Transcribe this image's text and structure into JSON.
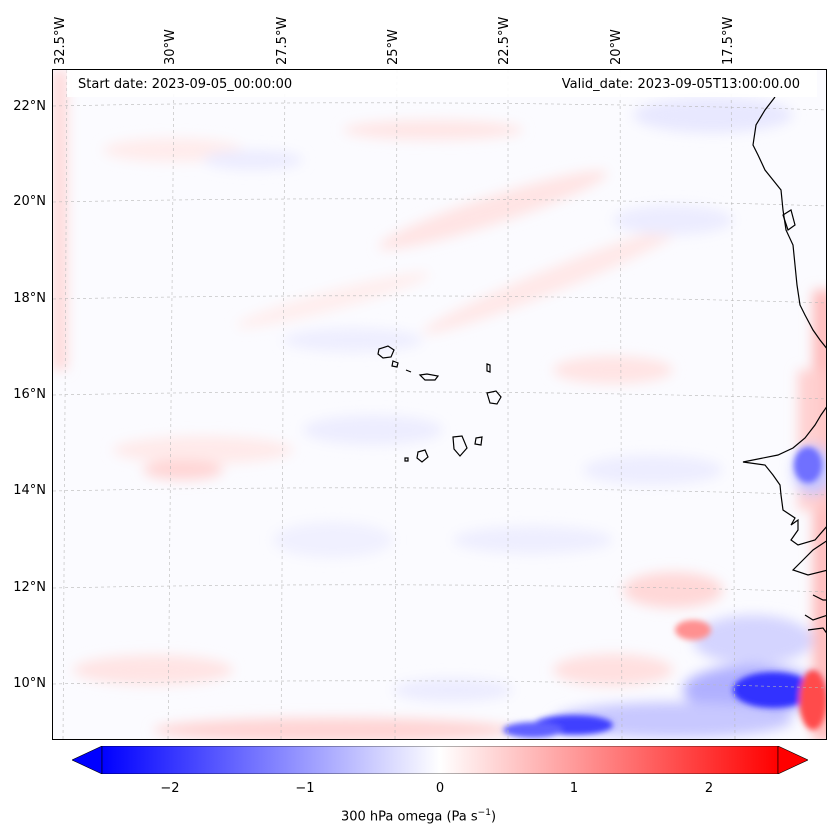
{
  "header": {
    "start_date": "Start date: 2023-09-05_00:00:00",
    "valid_date": "Valid_date: 2023-09-05T13:00:00.00"
  },
  "map": {
    "longitude_labels": [
      "32.5°W",
      "30°W",
      "27.5°W",
      "25°W",
      "22.5°W",
      "20°W",
      "17.5°W"
    ],
    "latitude_labels": [
      "22°N",
      "20°N",
      "18°N",
      "16°N",
      "14°N",
      "12°N",
      "10°N"
    ],
    "extent": {
      "lon_min": -32.6,
      "lon_max": -15.3,
      "lat_min": 8.9,
      "lat_max": 22.7
    },
    "field": "300 hPa omega",
    "gridlines": true
  },
  "colorbar": {
    "ticks": [
      "−2",
      "−1",
      "0",
      "1",
      "2"
    ],
    "label": "300 hPa omega (Pa s",
    "label_sup": "−1",
    "label_end": ")",
    "range": [
      -2.6,
      2.6
    ],
    "colormap": "bwr",
    "extend": "both",
    "colors": {
      "low": "#0000ff",
      "mid": "#ffffff",
      "high": "#ff0000"
    }
  }
}
